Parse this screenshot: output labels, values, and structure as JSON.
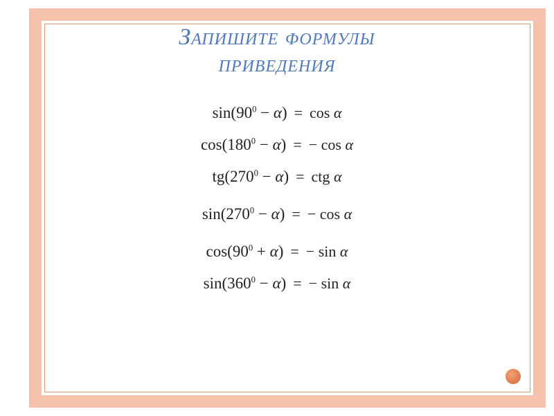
{
  "type": "document-slide",
  "background_color": "#ffffff",
  "frame_color": "#f5c3ab",
  "frame_border_color": "#d89a7c",
  "accent_dot_color": "#e07a4a",
  "title": {
    "line1": "Запишите формулы",
    "line2": "приведения",
    "color": "#5079b8",
    "fontsize": 34,
    "style": "italic small-caps"
  },
  "formulas": [
    {
      "lhs": "sin(90° − α)",
      "rhs": "cos α",
      "gap_before": false
    },
    {
      "lhs": "cos(180° − α)",
      "rhs": "− cos α",
      "gap_before": false
    },
    {
      "lhs": "tg(270° − α)",
      "rhs": "ctg α",
      "gap_before": false
    },
    {
      "lhs": "sin(270° − α)",
      "rhs": "− cos α",
      "gap_before": true
    },
    {
      "lhs": "cos(90° + α)",
      "rhs": "− sin α",
      "gap_before": true
    },
    {
      "lhs": "sin(360° − α)",
      "rhs": "− sin α",
      "gap_before": false
    }
  ],
  "formula_fontsize": 23,
  "formula_color": "#222222",
  "equals_symbol": "="
}
